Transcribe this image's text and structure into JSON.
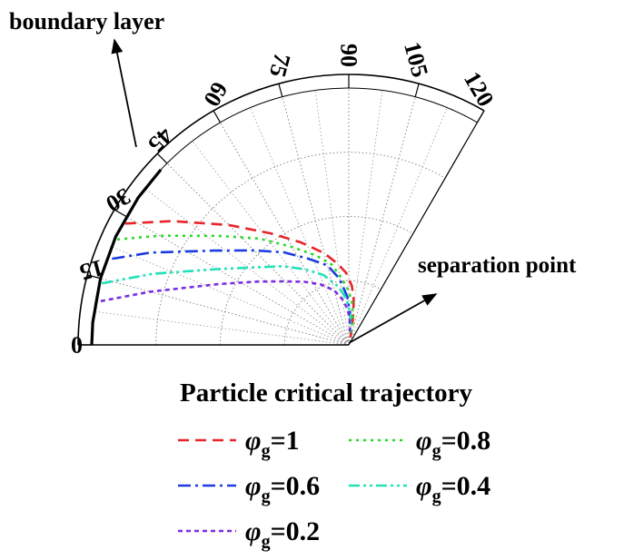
{
  "chart_data": {
    "type": "line",
    "coordinate_system": "polar",
    "theta_range_deg": [
      0,
      120
    ],
    "theta_ticks": [
      "0",
      "15",
      "30",
      "45",
      "60",
      "75",
      "90",
      "105",
      "120"
    ],
    "radial_grid": true,
    "angular_grid": true,
    "annotations": [
      {
        "text": "boundary layer"
      },
      {
        "text": "separation point"
      }
    ],
    "boundary_curve": {
      "points": [
        [
          0,
          1.0
        ],
        [
          5,
          1.0
        ],
        [
          15,
          1.0
        ],
        [
          25,
          1.0
        ],
        [
          35,
          1.0
        ],
        [
          43,
          1.0
        ]
      ]
    },
    "legend_title": "Particle critical trajectory",
    "legend_position": "bottom",
    "series": [
      {
        "name_symbol": "φ",
        "name_subscript": "g",
        "name_value": "=1",
        "color": "#e8242a",
        "dash": "dashed",
        "points": [
          [
            28.5,
            0.99
          ],
          [
            35,
            0.84
          ],
          [
            45,
            0.66
          ],
          [
            55,
            0.53
          ],
          [
            65,
            0.44
          ],
          [
            75,
            0.37
          ],
          [
            82,
            0.32
          ],
          [
            88,
            0.28
          ],
          [
            93,
            0.23
          ],
          [
            96,
            0.18
          ],
          [
            98,
            0.13
          ],
          [
            100,
            0.08
          ],
          [
            102,
            0.03
          ]
        ]
      },
      {
        "name_symbol": "φ",
        "name_subscript": "g",
        "name_value": "=0.8",
        "color": "#28d828",
        "dash": "dotted",
        "points": [
          [
            24.5,
            0.99
          ],
          [
            30,
            0.85
          ],
          [
            40,
            0.66
          ],
          [
            50,
            0.54
          ],
          [
            60,
            0.44
          ],
          [
            70,
            0.37
          ],
          [
            78,
            0.32
          ],
          [
            84,
            0.26
          ],
          [
            90,
            0.21
          ],
          [
            95,
            0.16
          ],
          [
            99,
            0.1
          ],
          [
            101,
            0.04
          ]
        ]
      },
      {
        "name_symbol": "φ",
        "name_subscript": "g",
        "name_value": "=0.6",
        "color": "#1b3be0",
        "dash": "dashdot",
        "points": [
          [
            20,
            0.98
          ],
          [
            25,
            0.85
          ],
          [
            35,
            0.64
          ],
          [
            45,
            0.52
          ],
          [
            55,
            0.44
          ],
          [
            65,
            0.37
          ],
          [
            75,
            0.32
          ],
          [
            82,
            0.26
          ],
          [
            88,
            0.19
          ],
          [
            92,
            0.13
          ],
          [
            96,
            0.07
          ]
        ]
      },
      {
        "name_symbol": "φ",
        "name_subscript": "g",
        "name_value": "=0.4",
        "color": "#22e0b8",
        "dash": "dashdotdot",
        "points": [
          [
            14,
            0.99
          ],
          [
            20,
            0.81
          ],
          [
            30,
            0.59
          ],
          [
            40,
            0.47
          ],
          [
            50,
            0.4
          ],
          [
            60,
            0.34
          ],
          [
            70,
            0.29
          ],
          [
            80,
            0.23
          ],
          [
            87,
            0.18
          ],
          [
            93,
            0.12
          ],
          [
            96,
            0.06
          ]
        ]
      },
      {
        "name_symbol": "φ",
        "name_subscript": "g",
        "name_value": "=0.2",
        "color": "#7a2ee0",
        "dash": "shortdash",
        "points": [
          [
            10,
            0.98
          ],
          [
            15,
            0.8
          ],
          [
            25,
            0.56
          ],
          [
            35,
            0.43
          ],
          [
            45,
            0.35
          ],
          [
            55,
            0.3
          ],
          [
            65,
            0.26
          ],
          [
            75,
            0.22
          ],
          [
            82,
            0.18
          ],
          [
            88,
            0.14
          ],
          [
            92,
            0.1
          ],
          [
            95,
            0.05
          ]
        ]
      }
    ]
  }
}
